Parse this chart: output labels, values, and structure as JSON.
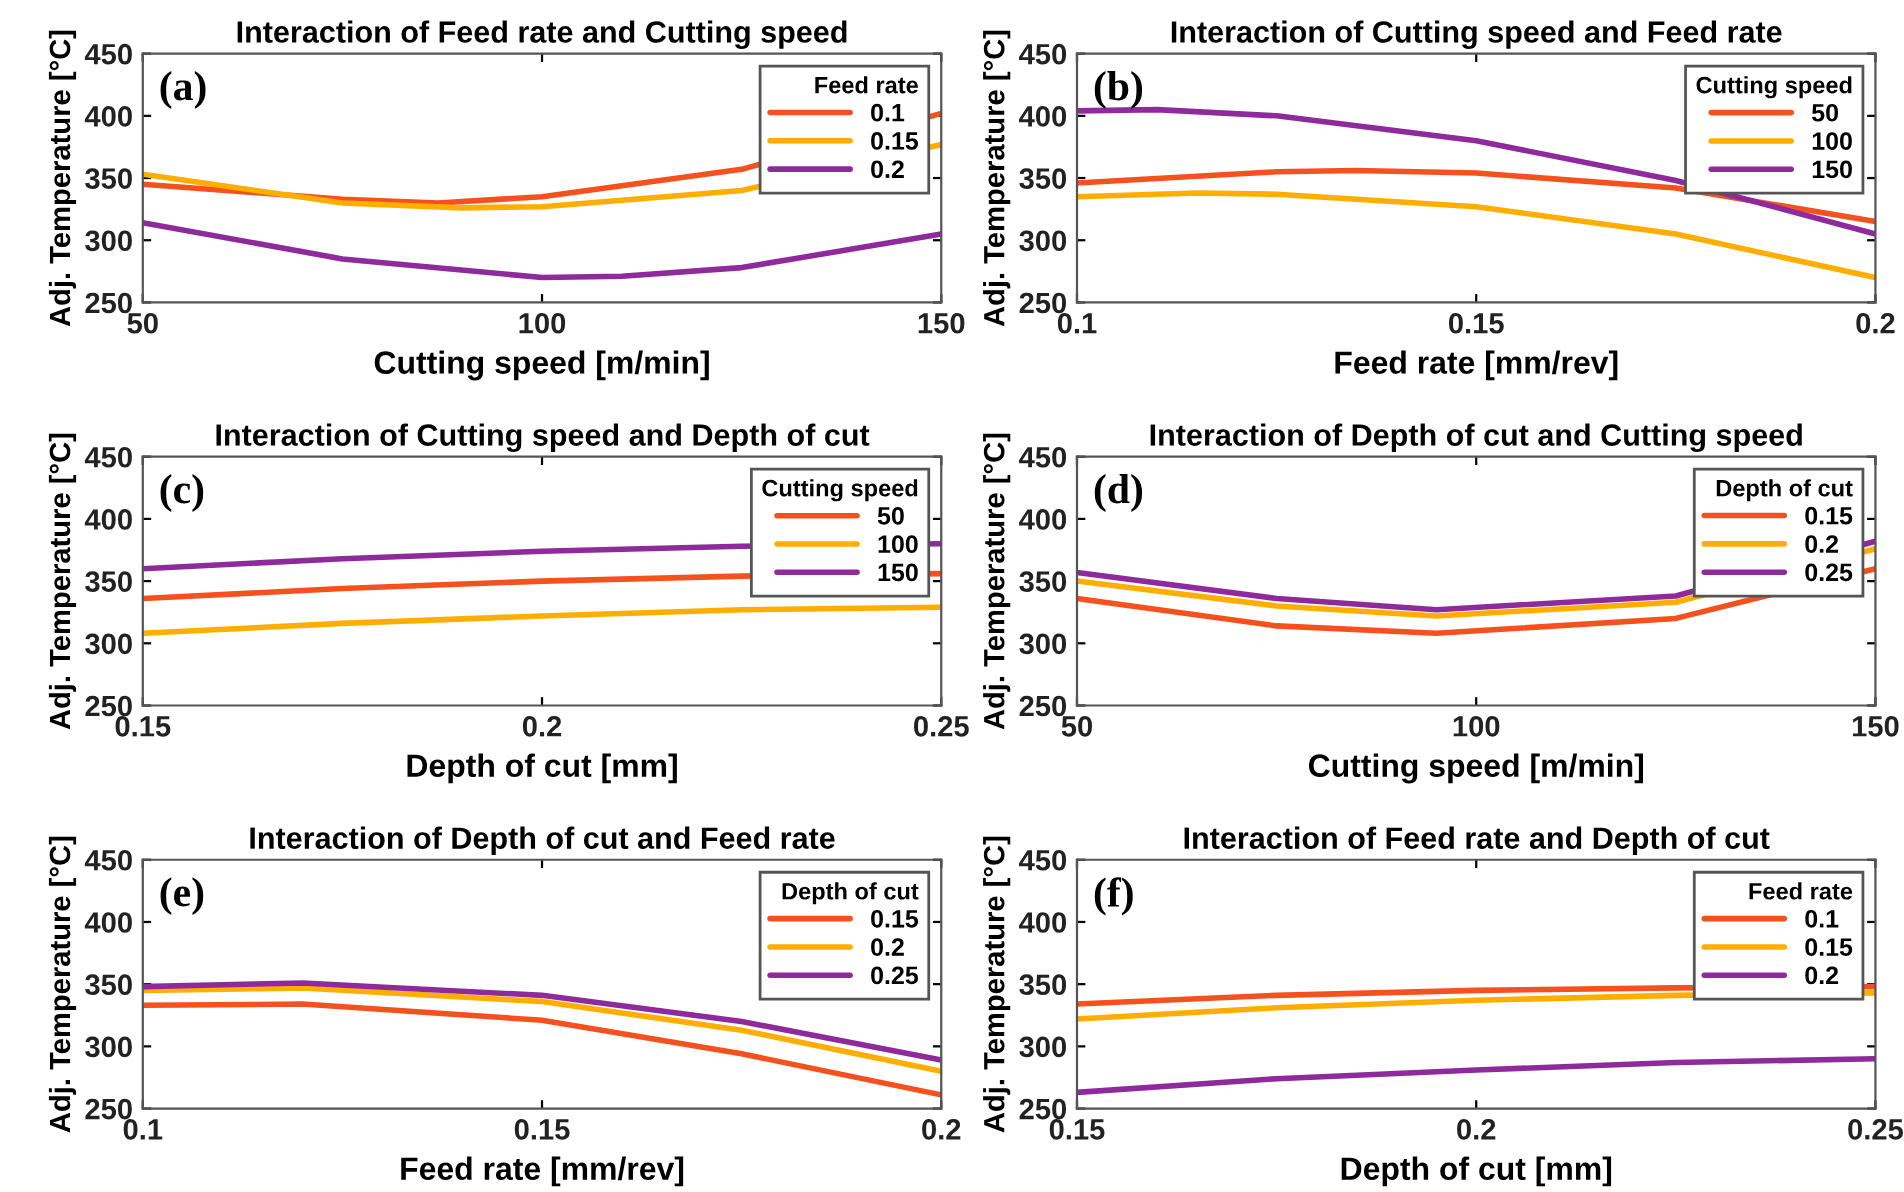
{
  "chart_data": [
    {
      "type": "line",
      "title": "Interaction of Feed rate and Cutting speed",
      "xlabel": "Cutting speed [m/min]",
      "ylabel": "Adj. Temperature [°C]",
      "legend_title": "Feed rate",
      "annotations": [
        "(a)"
      ],
      "legend": "top right",
      "xlim": [
        50,
        150
      ],
      "xticks": [
        50,
        100,
        150
      ],
      "ylim": [
        250,
        450
      ],
      "yticks": [
        250,
        300,
        350,
        400,
        450
      ],
      "series": [
        {
          "name": "0.1",
          "color": "#f4511e",
          "x": [
            50,
            75,
            87,
            100,
            125,
            150
          ],
          "values": [
            345,
            333,
            330,
            335,
            357,
            402
          ]
        },
        {
          "name": "0.15",
          "color": "#ffae00",
          "x": [
            50,
            75,
            90,
            100,
            125,
            150
          ],
          "values": [
            353,
            330,
            326,
            327,
            340,
            377
          ]
        },
        {
          "name": "0.2",
          "color": "#8e2a9b",
          "x": [
            50,
            75,
            100,
            110,
            125,
            150
          ],
          "values": [
            314,
            285,
            270,
            271,
            278,
            305
          ]
        }
      ]
    },
    {
      "type": "line",
      "title": "Interaction of Cutting speed and Feed rate",
      "xlabel": "Feed rate [mm/rev]",
      "ylabel": "Adj. Temperature [°C]",
      "legend_title": "Cutting speed",
      "annotations": [
        "(b)"
      ],
      "legend": "top right",
      "xlim": [
        0.1,
        0.2
      ],
      "xticks": [
        0.1,
        0.15,
        0.2
      ],
      "ylim": [
        250,
        450
      ],
      "yticks": [
        250,
        300,
        350,
        400,
        450
      ],
      "series": [
        {
          "name": "50",
          "color": "#f4511e",
          "x": [
            0.1,
            0.125,
            0.135,
            0.15,
            0.175,
            0.2
          ],
          "values": [
            346,
            355,
            356,
            354,
            342,
            315
          ]
        },
        {
          "name": "100",
          "color": "#ffae00",
          "x": [
            0.1,
            0.115,
            0.125,
            0.15,
            0.175,
            0.2
          ],
          "values": [
            335,
            338,
            337,
            327,
            305,
            270
          ]
        },
        {
          "name": "150",
          "color": "#8e2a9b",
          "x": [
            0.1,
            0.11,
            0.125,
            0.15,
            0.175,
            0.2
          ],
          "values": [
            404,
            405,
            400,
            380,
            348,
            305
          ]
        }
      ]
    },
    {
      "type": "line",
      "title": "Interaction of Cutting speed and Depth of cut",
      "xlabel": "Depth of cut [mm]",
      "ylabel": "Adj. Temperature [°C]",
      "legend_title": "Cutting speed",
      "annotations": [
        "(c)"
      ],
      "legend": "top right",
      "xlim": [
        0.15,
        0.25
      ],
      "xticks": [
        0.15,
        0.2,
        0.25
      ],
      "ylim": [
        250,
        450
      ],
      "yticks": [
        250,
        300,
        350,
        400,
        450
      ],
      "series": [
        {
          "name": "50",
          "color": "#f4511e",
          "x": [
            0.15,
            0.175,
            0.2,
            0.225,
            0.25
          ],
          "values": [
            336,
            344,
            350,
            354,
            356
          ]
        },
        {
          "name": "100",
          "color": "#ffae00",
          "x": [
            0.15,
            0.175,
            0.2,
            0.225,
            0.25
          ],
          "values": [
            308,
            316,
            322,
            327,
            329
          ]
        },
        {
          "name": "150",
          "color": "#8e2a9b",
          "x": [
            0.15,
            0.175,
            0.2,
            0.225,
            0.25
          ],
          "values": [
            360,
            368,
            374,
            378,
            380
          ]
        }
      ]
    },
    {
      "type": "line",
      "title": "Interaction of Depth of cut and Cutting speed",
      "xlabel": "Cutting speed [m/min]",
      "ylabel": "Adj. Temperature [°C]",
      "legend_title": "Depth of cut",
      "annotations": [
        "(d)"
      ],
      "legend": "top right",
      "xlim": [
        50,
        150
      ],
      "xticks": [
        50,
        100,
        150
      ],
      "ylim": [
        250,
        450
      ],
      "yticks": [
        250,
        300,
        350,
        400,
        450
      ],
      "series": [
        {
          "name": "0.15",
          "color": "#f4511e",
          "x": [
            50,
            75,
            95,
            125,
            150
          ],
          "values": [
            336,
            314,
            308,
            320,
            360
          ]
        },
        {
          "name": "0.2",
          "color": "#ffae00",
          "x": [
            50,
            75,
            95,
            125,
            150
          ],
          "values": [
            350,
            330,
            322,
            333,
            376
          ]
        },
        {
          "name": "0.25",
          "color": "#8e2a9b",
          "x": [
            50,
            75,
            95,
            125,
            150
          ],
          "values": [
            357,
            336,
            327,
            338,
            382
          ]
        }
      ]
    },
    {
      "type": "line",
      "title": "Interaction of Depth of cut and Feed rate",
      "xlabel": "Feed rate [mm/rev]",
      "ylabel": "Adj. Temperature [°C]",
      "legend_title": "Depth of cut",
      "annotations": [
        "(e)"
      ],
      "legend": "top right",
      "xlim": [
        0.1,
        0.2
      ],
      "xticks": [
        0.1,
        0.15,
        0.2
      ],
      "ylim": [
        250,
        450
      ],
      "yticks": [
        250,
        300,
        350,
        400,
        450
      ],
      "series": [
        {
          "name": "0.15",
          "color": "#f4511e",
          "x": [
            0.1,
            0.12,
            0.15,
            0.175,
            0.2
          ],
          "values": [
            333,
            334,
            321,
            294,
            261
          ]
        },
        {
          "name": "0.2",
          "color": "#ffae00",
          "x": [
            0.1,
            0.12,
            0.15,
            0.175,
            0.2
          ],
          "values": [
            345,
            347,
            336,
            313,
            280
          ]
        },
        {
          "name": "0.25",
          "color": "#8e2a9b",
          "x": [
            0.1,
            0.12,
            0.15,
            0.175,
            0.2
          ],
          "values": [
            348,
            351,
            341,
            320,
            289
          ]
        }
      ]
    },
    {
      "type": "line",
      "title": "Interaction of Feed rate and Depth of cut",
      "xlabel": "Depth of cut [mm]",
      "ylabel": "Adj. Temperature [°C]",
      "legend_title": "Feed rate",
      "annotations": [
        "(f)"
      ],
      "legend": "top right",
      "xlim": [
        0.15,
        0.25
      ],
      "xticks": [
        0.15,
        0.2,
        0.25
      ],
      "ylim": [
        250,
        450
      ],
      "yticks": [
        250,
        300,
        350,
        400,
        450
      ],
      "series": [
        {
          "name": "0.1",
          "color": "#f4511e",
          "x": [
            0.15,
            0.175,
            0.2,
            0.225,
            0.25
          ],
          "values": [
            334,
            341,
            345,
            347,
            348
          ]
        },
        {
          "name": "0.15",
          "color": "#ffae00",
          "x": [
            0.15,
            0.175,
            0.2,
            0.225,
            0.25
          ],
          "values": [
            322,
            331,
            337,
            341,
            343
          ]
        },
        {
          "name": "0.2",
          "color": "#8e2a9b",
          "x": [
            0.15,
            0.175,
            0.2,
            0.225,
            0.25
          ],
          "values": [
            263,
            274,
            281,
            287,
            290
          ]
        }
      ]
    }
  ]
}
